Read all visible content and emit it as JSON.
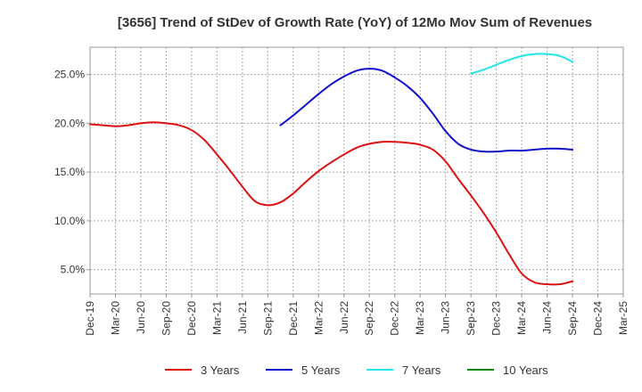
{
  "chart_data": {
    "type": "line",
    "title": "[3656]  Trend of StDev of Growth Rate (YoY) of 12Mo Mov Sum of Revenues",
    "xlabel": "",
    "ylabel": "",
    "ylim": [
      2.5,
      27.8
    ],
    "y_ticks": [
      {
        "value": 5,
        "label": "5.0%"
      },
      {
        "value": 10,
        "label": "10.0%"
      },
      {
        "value": 15,
        "label": "15.0%"
      },
      {
        "value": 20,
        "label": "20.0%"
      },
      {
        "value": 25,
        "label": "25.0%"
      }
    ],
    "x_range": [
      0,
      21
    ],
    "x_ticks": [
      "Dec-19",
      "Mar-20",
      "Jun-20",
      "Sep-20",
      "Dec-20",
      "Mar-21",
      "Jun-21",
      "Sep-21",
      "Dec-21",
      "Mar-22",
      "Jun-22",
      "Sep-22",
      "Dec-22",
      "Mar-23",
      "Jun-23",
      "Sep-23",
      "Dec-23",
      "Mar-24",
      "Jun-24",
      "Sep-24",
      "Dec-24",
      "Mar-25"
    ],
    "grid": true,
    "legend_position": "bottom",
    "series": [
      {
        "name": "3 Years",
        "color": "#dd1111",
        "points": [
          [
            0,
            19.9
          ],
          [
            0.5,
            19.8
          ],
          [
            1,
            19.7
          ],
          [
            1.5,
            19.8
          ],
          [
            2,
            20.0
          ],
          [
            2.5,
            20.1
          ],
          [
            3,
            20.0
          ],
          [
            3.5,
            19.8
          ],
          [
            4,
            19.3
          ],
          [
            4.5,
            18.3
          ],
          [
            5,
            16.8
          ],
          [
            5.5,
            15.2
          ],
          [
            6,
            13.5
          ],
          [
            6.5,
            12.0
          ],
          [
            7,
            11.6
          ],
          [
            7.5,
            11.9
          ],
          [
            8,
            12.8
          ],
          [
            8.5,
            14.0
          ],
          [
            9,
            15.1
          ],
          [
            9.5,
            16.0
          ],
          [
            10,
            16.8
          ],
          [
            10.5,
            17.5
          ],
          [
            11,
            17.9
          ],
          [
            11.5,
            18.1
          ],
          [
            12,
            18.1
          ],
          [
            12.5,
            18.0
          ],
          [
            13,
            17.8
          ],
          [
            13.5,
            17.3
          ],
          [
            14,
            16.1
          ],
          [
            14.5,
            14.3
          ],
          [
            15,
            12.6
          ],
          [
            15.5,
            10.8
          ],
          [
            16,
            8.8
          ],
          [
            16.5,
            6.6
          ],
          [
            17,
            4.6
          ],
          [
            17.5,
            3.7
          ],
          [
            18,
            3.5
          ],
          [
            18.5,
            3.5
          ],
          [
            19,
            3.8
          ]
        ]
      },
      {
        "name": "5 Years",
        "color": "#1111cc",
        "points": [
          [
            7.5,
            19.8
          ],
          [
            8,
            20.8
          ],
          [
            8.5,
            21.9
          ],
          [
            9,
            23.0
          ],
          [
            9.5,
            24.0
          ],
          [
            10,
            24.8
          ],
          [
            10.5,
            25.4
          ],
          [
            11,
            25.6
          ],
          [
            11.5,
            25.4
          ],
          [
            12,
            24.7
          ],
          [
            12.5,
            23.8
          ],
          [
            13,
            22.6
          ],
          [
            13.5,
            21.0
          ],
          [
            14,
            19.2
          ],
          [
            14.5,
            17.9
          ],
          [
            15,
            17.3
          ],
          [
            15.5,
            17.1
          ],
          [
            16,
            17.1
          ],
          [
            16.5,
            17.2
          ],
          [
            17,
            17.2
          ],
          [
            17.5,
            17.3
          ],
          [
            18,
            17.4
          ],
          [
            18.5,
            17.4
          ],
          [
            19,
            17.3
          ]
        ]
      },
      {
        "name": "7 Years",
        "color": "#22e5e5",
        "points": [
          [
            15,
            25.1
          ],
          [
            15.5,
            25.5
          ],
          [
            16,
            26.0
          ],
          [
            16.5,
            26.5
          ],
          [
            17,
            26.9
          ],
          [
            17.5,
            27.1
          ],
          [
            18,
            27.1
          ],
          [
            18.5,
            26.9
          ],
          [
            19,
            26.3
          ]
        ]
      },
      {
        "name": "10 Years",
        "color": "#118811",
        "points": []
      }
    ]
  }
}
